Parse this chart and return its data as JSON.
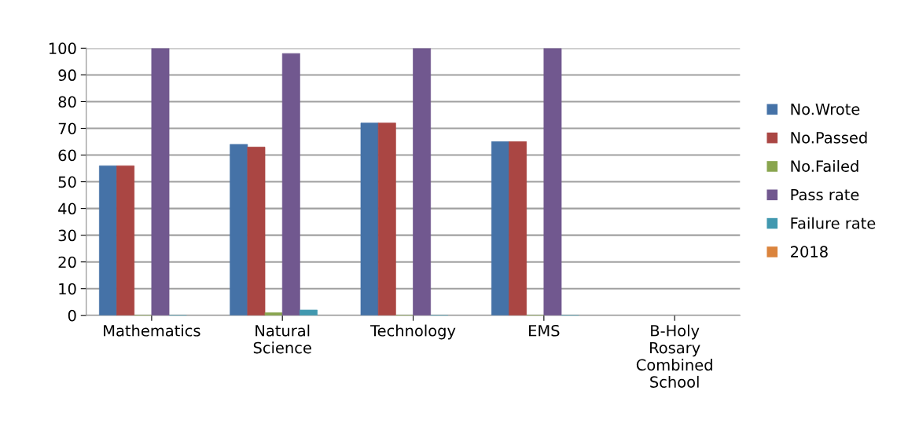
{
  "chart_data": {
    "type": "bar",
    "categories": [
      "Mathematics",
      "Natural\nScience",
      "Technology",
      "EMS",
      "B-Holy\nRosary\nCombined\nSchool"
    ],
    "series": [
      {
        "name": "No.Wrote",
        "color": "#4572a7",
        "values": [
          56,
          64,
          72,
          65,
          null
        ]
      },
      {
        "name": "No.Passed",
        "color": "#aa4643",
        "values": [
          56,
          63,
          72,
          65,
          null
        ]
      },
      {
        "name": "No.Failed",
        "color": "#89a54e",
        "values": [
          0,
          1,
          0,
          0,
          null
        ]
      },
      {
        "name": "Pass rate",
        "color": "#71588f",
        "values": [
          100,
          98,
          100,
          100,
          null
        ]
      },
      {
        "name": "Failure rate",
        "color": "#4198af",
        "values": [
          0,
          2,
          0,
          0,
          null
        ]
      },
      {
        "name": "2018",
        "color": "#db843d",
        "values": [
          null,
          null,
          null,
          null,
          null
        ]
      }
    ],
    "ylim": [
      0,
      100
    ],
    "yticks": [
      0,
      10,
      20,
      30,
      40,
      50,
      60,
      70,
      80,
      90,
      100
    ],
    "grid": "y",
    "legend": "right"
  }
}
